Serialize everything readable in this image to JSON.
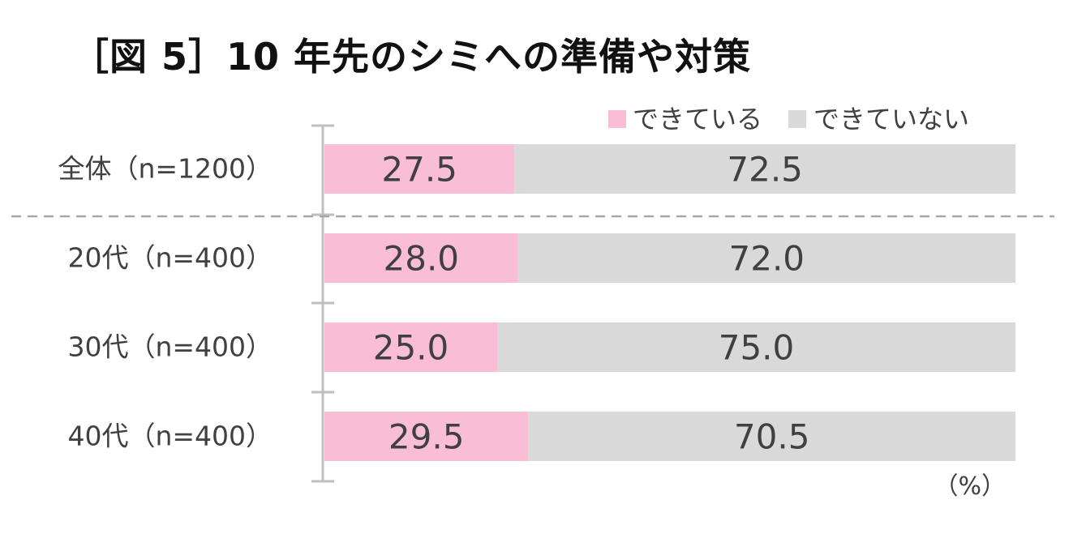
{
  "title": "［図 5］10 年先のシミへの準備や対策",
  "colors": {
    "prepared": "#f9bdd6",
    "not_prepared": "#d9d9d9",
    "axis": "#bfbfbf",
    "text": "#404040"
  },
  "chart_data": {
    "type": "bar",
    "orientation": "horizontal",
    "stacked": "percent",
    "title": "［図 5］10 年先のシミへの準備や対策",
    "categories": [
      "全体（n=1200）",
      "20代（n=400）",
      "30代（n=400）",
      "40代（n=400）"
    ],
    "series": [
      {
        "name": "できている",
        "values": [
          27.5,
          28.0,
          25.0,
          29.5
        ]
      },
      {
        "name": "できていない",
        "values": [
          72.5,
          72.0,
          75.0,
          70.5
        ]
      }
    ],
    "unit_label": "（%）",
    "xlim": [
      0,
      100
    ],
    "legend_position": "top-right",
    "separator_after_first_category": true
  }
}
